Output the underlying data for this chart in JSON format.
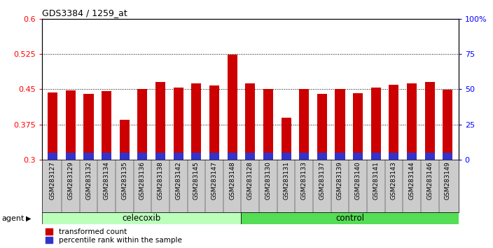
{
  "title": "GDS3384 / 1259_at",
  "samples": [
    "GSM283127",
    "GSM283129",
    "GSM283132",
    "GSM283134",
    "GSM283135",
    "GSM283136",
    "GSM283138",
    "GSM283142",
    "GSM283145",
    "GSM283147",
    "GSM283148",
    "GSM283128",
    "GSM283130",
    "GSM283131",
    "GSM283133",
    "GSM283137",
    "GSM283139",
    "GSM283140",
    "GSM283141",
    "GSM283143",
    "GSM283144",
    "GSM283146",
    "GSM283149"
  ],
  "transformed_count": [
    0.443,
    0.447,
    0.44,
    0.446,
    0.385,
    0.45,
    0.465,
    0.453,
    0.463,
    0.458,
    0.523,
    0.463,
    0.45,
    0.39,
    0.45,
    0.44,
    0.45,
    0.442,
    0.453,
    0.46,
    0.462,
    0.465,
    0.449
  ],
  "percentile_rank": [
    0.3085,
    0.3085,
    0.3085,
    0.3085,
    0.3085,
    0.3085,
    0.3085,
    0.3085,
    0.3085,
    0.3085,
    0.3085,
    0.3085,
    0.3085,
    0.3085,
    0.3085,
    0.3085,
    0.3085,
    0.3085,
    0.3085,
    0.3085,
    0.3085,
    0.3085,
    0.3085
  ],
  "celecoxib_count": 11,
  "control_count": 12,
  "ylim_left": [
    0.3,
    0.6
  ],
  "ylim_right": [
    0,
    100
  ],
  "yticks_left": [
    0.3,
    0.375,
    0.45,
    0.525,
    0.6
  ],
  "yticks_right": [
    0,
    25,
    50,
    75,
    100
  ],
  "ytick_right_labels": [
    "0",
    "25",
    "50",
    "75",
    "100%"
  ],
  "bar_color_red": "#cc0000",
  "bar_color_blue": "#3333cc",
  "celecoxib_color_light": "#bbffbb",
  "control_color": "#55dd55",
  "bg_color": "#cccccc",
  "plot_bg": "#ffffff",
  "bar_width": 0.55
}
